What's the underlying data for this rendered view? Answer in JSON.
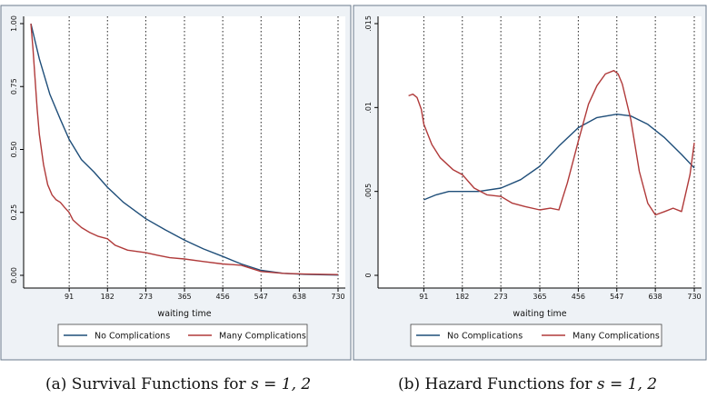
{
  "colors": {
    "no_complications": "#1f4e79",
    "many_complications": "#b03a3a",
    "panel_bg": "#ffffff",
    "frame_bg": "#eef2f6",
    "axis": "#000000"
  },
  "captions": {
    "a": "(a) Survival Functions for",
    "b": "(b) Hazard Functions for",
    "math": "s = 1, 2"
  },
  "chart_data": [
    {
      "type": "line",
      "xlabel": "waiting time",
      "xticks": [
        "91",
        "182",
        "273",
        "365",
        "456",
        "547",
        "638",
        "730"
      ],
      "yticks": [
        "0.00",
        "0.25",
        "0.50",
        "0.75",
        "1.00"
      ],
      "xlim": [
        0,
        730
      ],
      "ylim": [
        0,
        1
      ],
      "legend": {
        "placement": "bottom",
        "entries": [
          "No Complications",
          "Many Complications"
        ]
      },
      "series": [
        {
          "name": "No Complications",
          "x": [
            0,
            20,
            45,
            70,
            91,
            120,
            150,
            182,
            220,
            273,
            320,
            365,
            410,
            456,
            500,
            547,
            600,
            650,
            700,
            730
          ],
          "y": [
            1.0,
            0.86,
            0.72,
            0.62,
            0.54,
            0.46,
            0.41,
            0.35,
            0.29,
            0.225,
            0.18,
            0.14,
            0.105,
            0.075,
            0.045,
            0.02,
            0.008,
            0.004,
            0.002,
            0.001
          ]
        },
        {
          "name": "Many Complications",
          "x": [
            0,
            5,
            10,
            15,
            20,
            30,
            40,
            50,
            60,
            70,
            80,
            91,
            100,
            120,
            140,
            160,
            182,
            200,
            230,
            273,
            300,
            330,
            365,
            410,
            456,
            500,
            547,
            600,
            650,
            730
          ],
          "y": [
            1.0,
            0.9,
            0.78,
            0.66,
            0.56,
            0.44,
            0.36,
            0.32,
            0.3,
            0.29,
            0.27,
            0.25,
            0.22,
            0.19,
            0.17,
            0.155,
            0.145,
            0.12,
            0.1,
            0.09,
            0.08,
            0.07,
            0.065,
            0.055,
            0.045,
            0.04,
            0.015,
            0.008,
            0.005,
            0.003
          ]
        }
      ]
    },
    {
      "type": "line",
      "xlabel": "waiting time",
      "xticks": [
        "91",
        "182",
        "273",
        "365",
        "456",
        "547",
        "638",
        "730"
      ],
      "yticks": [
        "0",
        ".005",
        ".01",
        ".015"
      ],
      "xlim": [
        0,
        730
      ],
      "ylim": [
        0,
        0.015
      ],
      "legend": {
        "placement": "bottom",
        "entries": [
          "No Complications",
          "Many Complications"
        ]
      },
      "series": [
        {
          "name": "No Complications",
          "x": [
            91,
            120,
            150,
            182,
            220,
            273,
            320,
            365,
            410,
            456,
            500,
            547,
            580,
            620,
            660,
            700,
            730
          ],
          "y": [
            0.0045,
            0.0048,
            0.005,
            0.005,
            0.005,
            0.0052,
            0.0057,
            0.0065,
            0.0077,
            0.0088,
            0.0094,
            0.0096,
            0.0095,
            0.009,
            0.0082,
            0.0072,
            0.0064
          ]
        },
        {
          "name": "Many Complications",
          "x": [
            55,
            65,
            75,
            85,
            91,
            110,
            130,
            160,
            182,
            210,
            240,
            273,
            300,
            330,
            365,
            390,
            410,
            430,
            456,
            480,
            500,
            520,
            540,
            550,
            560,
            580,
            600,
            620,
            638,
            660,
            680,
            700,
            720,
            730
          ],
          "y": [
            0.0107,
            0.0108,
            0.0106,
            0.0099,
            0.009,
            0.0078,
            0.007,
            0.0063,
            0.006,
            0.0052,
            0.0048,
            0.0047,
            0.0043,
            0.0041,
            0.0039,
            0.004,
            0.0039,
            0.0055,
            0.008,
            0.0102,
            0.0113,
            0.012,
            0.0122,
            0.012,
            0.0114,
            0.0093,
            0.0062,
            0.0043,
            0.0036,
            0.0038,
            0.004,
            0.0038,
            0.006,
            0.0079
          ]
        }
      ]
    }
  ]
}
